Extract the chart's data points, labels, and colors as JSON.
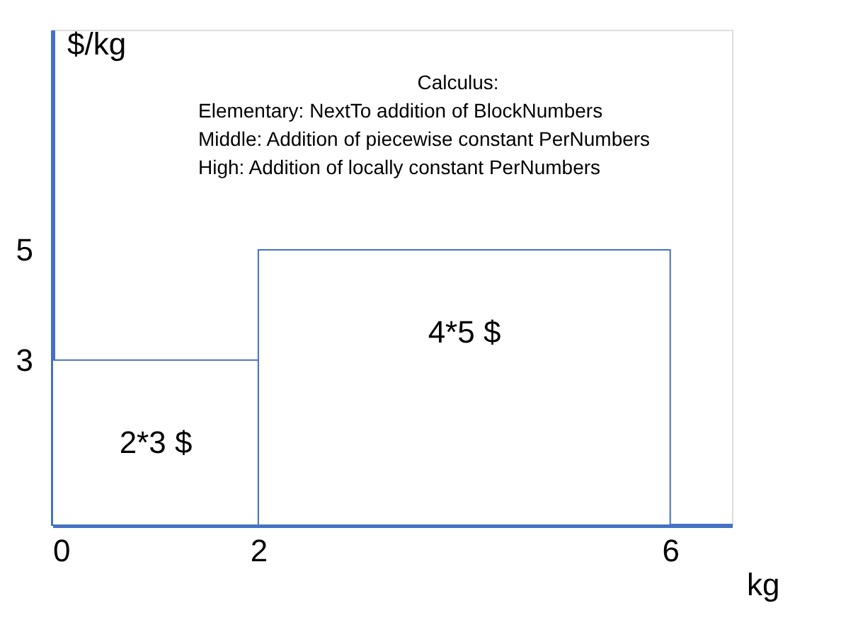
{
  "chart_data": {
    "type": "histogram",
    "bins": [
      0,
      2,
      6
    ],
    "values": [
      3,
      5
    ],
    "color": "#4472c4",
    "xlabel": "kg",
    "ylabel": "$/kg",
    "xlim": [
      0,
      6.6
    ],
    "ylim": [
      0,
      9
    ],
    "xticks": [
      0,
      2,
      6
    ],
    "yticks": [
      3,
      5
    ],
    "grid": false,
    "annotations": [
      "2*3 $",
      "4*5 $",
      "Calculus:",
      "Elementary: NextTo addition of BlockNumbers",
      "Middle: Addition of piecewise constant PerNumbers",
      "High: Addition of locally constant PerNumbers"
    ]
  }
}
